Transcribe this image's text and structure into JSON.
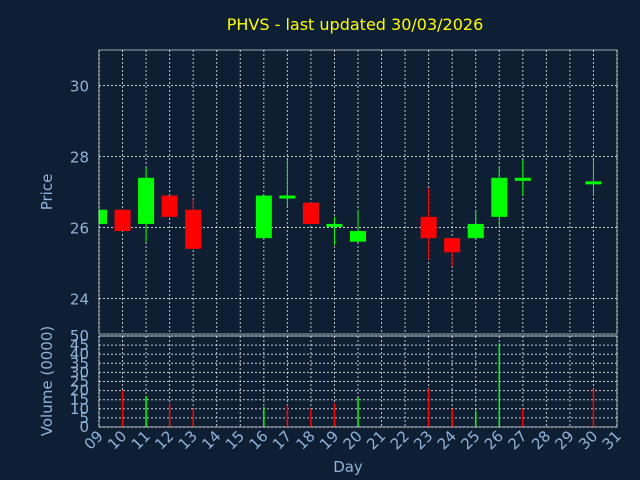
{
  "chart_data": [
    {
      "type": "candlestick",
      "title": "PHVS - last updated 30/03/2026",
      "ylabel": "Price",
      "ylim": [
        23,
        31
      ],
      "yticks": [
        24,
        26,
        28,
        30
      ],
      "x_domain": [
        9,
        31
      ],
      "xticks": [
        "09",
        "10",
        "11",
        "12",
        "13",
        "14",
        "15",
        "16",
        "17",
        "18",
        "19",
        "20",
        "21",
        "22",
        "23",
        "24",
        "25",
        "26",
        "27",
        "28",
        "29",
        "30",
        "31"
      ],
      "grid": true,
      "colors": {
        "up": "#00ff00",
        "down": "#ff0000"
      },
      "candles": [
        {
          "day": 9,
          "open": 26.1,
          "high": 26.5,
          "low": 26.1,
          "close": 26.5
        },
        {
          "day": 10,
          "open": 26.5,
          "high": 26.5,
          "low": 25.9,
          "close": 25.9
        },
        {
          "day": 11,
          "open": 26.1,
          "high": 27.7,
          "low": 25.6,
          "close": 27.4
        },
        {
          "day": 12,
          "open": 26.9,
          "high": 26.9,
          "low": 26.3,
          "close": 26.3
        },
        {
          "day": 13,
          "open": 26.5,
          "high": 26.8,
          "low": 25.4,
          "close": 25.4
        },
        {
          "day": 16,
          "open": 25.7,
          "high": 26.9,
          "low": 25.7,
          "close": 26.9
        },
        {
          "day": 17,
          "open": 26.9,
          "high": 27.9,
          "low": 26.6,
          "close": 26.9
        },
        {
          "day": 18,
          "open": 26.7,
          "high": 26.7,
          "low": 26.1,
          "close": 26.1
        },
        {
          "day": 19,
          "open": 26.1,
          "high": 26.3,
          "low": 25.5,
          "close": 26.1
        },
        {
          "day": 20,
          "open": 25.6,
          "high": 26.5,
          "low": 25.6,
          "close": 25.9
        },
        {
          "day": 23,
          "open": 26.3,
          "high": 27.1,
          "low": 25.1,
          "close": 25.7
        },
        {
          "day": 24,
          "open": 25.7,
          "high": 25.7,
          "low": 24.9,
          "close": 25.3
        },
        {
          "day": 25,
          "open": 25.7,
          "high": 26.5,
          "low": 25.7,
          "close": 26.1
        },
        {
          "day": 26,
          "open": 26.3,
          "high": 27.7,
          "low": 26.0,
          "close": 27.4
        },
        {
          "day": 27,
          "open": 27.4,
          "high": 27.9,
          "low": 26.9,
          "close": 27.4
        },
        {
          "day": 30,
          "open": 27.3,
          "high": 27.9,
          "low": 26.9,
          "close": 27.3
        }
      ]
    },
    {
      "type": "bar",
      "ylabel": "Volume (0000)",
      "xlabel": "Day",
      "ylim": [
        0,
        50
      ],
      "yticks": [
        0,
        5,
        10,
        15,
        20,
        25,
        30,
        35,
        40,
        45,
        50
      ],
      "x_domain": [
        9,
        31
      ],
      "xticks": [
        "09",
        "10",
        "11",
        "12",
        "13",
        "14",
        "15",
        "16",
        "17",
        "18",
        "19",
        "20",
        "21",
        "22",
        "23",
        "24",
        "25",
        "26",
        "27",
        "28",
        "29",
        "30",
        "31"
      ],
      "grid": true,
      "bars": [
        {
          "day": 10,
          "value": 20,
          "color": "#ff0000"
        },
        {
          "day": 11,
          "value": 17,
          "color": "#00ff00"
        },
        {
          "day": 12,
          "value": 13,
          "color": "#ff0000"
        },
        {
          "day": 13,
          "value": 10,
          "color": "#ff0000"
        },
        {
          "day": 16,
          "value": 11,
          "color": "#00ff00"
        },
        {
          "day": 17,
          "value": 12,
          "color": "#ff0000"
        },
        {
          "day": 18,
          "value": 10,
          "color": "#ff0000"
        },
        {
          "day": 19,
          "value": 13,
          "color": "#ff0000"
        },
        {
          "day": 20,
          "value": 16,
          "color": "#00ff00"
        },
        {
          "day": 23,
          "value": 21,
          "color": "#ff0000"
        },
        {
          "day": 24,
          "value": 10,
          "color": "#ff0000"
        },
        {
          "day": 25,
          "value": 9,
          "color": "#00ff00"
        },
        {
          "day": 26,
          "value": 46,
          "color": "#00ff00"
        },
        {
          "day": 27,
          "value": 10,
          "color": "#ff0000"
        },
        {
          "day": 30,
          "value": 21,
          "color": "#ff0000"
        }
      ]
    }
  ],
  "theme": {
    "background": "#0f1f33",
    "title_color": "#ffff00",
    "axis_text_color": "#8fb3d9",
    "grid_color": "#ffffff"
  }
}
